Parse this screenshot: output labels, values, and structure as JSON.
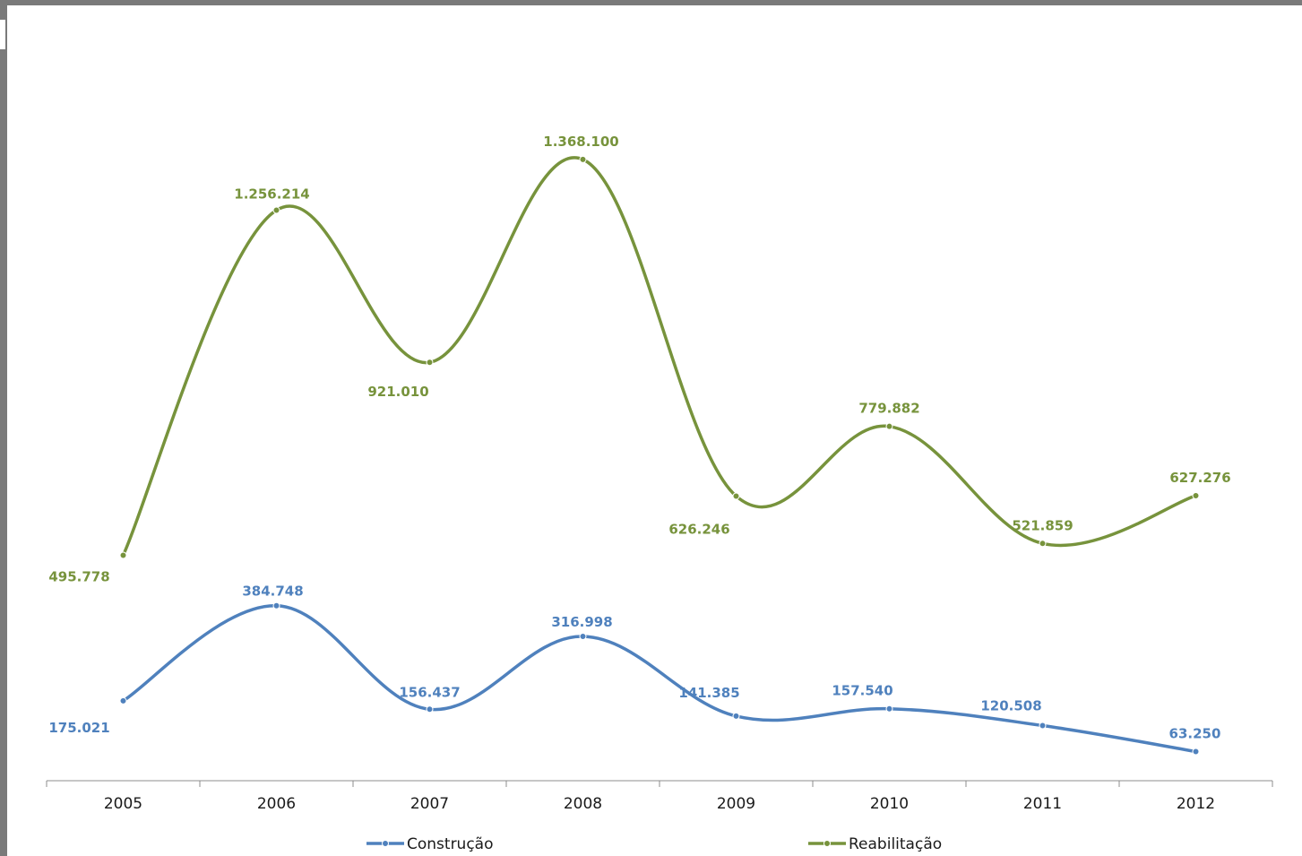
{
  "chart_data": {
    "type": "line",
    "smooth": true,
    "categories": [
      "2005",
      "2006",
      "2007",
      "2008",
      "2009",
      "2010",
      "2011",
      "2012"
    ],
    "series": [
      {
        "name": "Construção",
        "color": "#4f81bd",
        "values": [
          175021,
          384748,
          156437,
          316998,
          141385,
          157540,
          120508,
          63250
        ],
        "labels": [
          "175.021",
          "384.748",
          "156.437",
          "316.998",
          "141.385",
          "157.540",
          "120.508",
          "63.250"
        ]
      },
      {
        "name": "Reabilitação",
        "color": "#77933c",
        "values": [
          495778,
          1256214,
          921010,
          1368100,
          626246,
          779882,
          521859,
          627276
        ],
        "labels": [
          "495.778",
          "1.256.214",
          "921.010",
          "1.368.100",
          "626.246",
          "779.882",
          "521.859",
          "627.276"
        ]
      }
    ],
    "ylim": [
      0,
      1400000
    ],
    "grid": false,
    "legend_position": "bottom"
  }
}
